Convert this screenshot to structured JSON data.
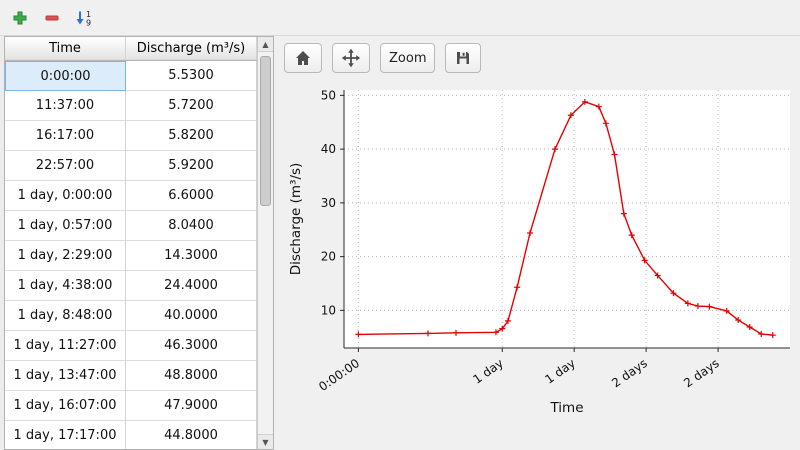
{
  "main_toolbar": {
    "icons": [
      "add-icon",
      "remove-icon",
      "sort-numeric-ascending-icon"
    ],
    "sort_digits": [
      "1",
      "9"
    ],
    "add_color": "#3fae49",
    "remove_color": "#e05050",
    "sort_arrow_color": "#2f6fd6"
  },
  "table": {
    "columns": [
      "Time",
      "Discharge (m³/s)"
    ],
    "selected_row": 0,
    "rows": [
      [
        "0:00:00",
        "5.5300"
      ],
      [
        "11:37:00",
        "5.7200"
      ],
      [
        "16:17:00",
        "5.8200"
      ],
      [
        "22:57:00",
        "5.9200"
      ],
      [
        "1 day, 0:00:00",
        "6.6000"
      ],
      [
        "1 day, 0:57:00",
        "8.0400"
      ],
      [
        "1 day, 2:29:00",
        "14.3000"
      ],
      [
        "1 day, 4:38:00",
        "24.4000"
      ],
      [
        "1 day, 8:48:00",
        "40.0000"
      ],
      [
        "1 day, 11:27:00",
        "46.3000"
      ],
      [
        "1 day, 13:47:00",
        "48.8000"
      ],
      [
        "1 day, 16:07:00",
        "47.9000"
      ],
      [
        "1 day, 17:17:00",
        "44.8000"
      ]
    ]
  },
  "chart_toolbar": {
    "icons": [
      "home-icon",
      "pan-icon",
      "save-icon"
    ],
    "zoom_label": "Zoom"
  },
  "chart_data": {
    "type": "line",
    "title": "",
    "xlabel": "Time",
    "ylabel": "Discharge (m³/s)",
    "x_days": [
      0,
      0.484,
      0.6785,
      0.9563,
      1.0,
      1.0396,
      1.1035,
      1.1931,
      1.3667,
      1.4771,
      1.5743,
      1.6715,
      1.7201,
      1.78,
      1.845,
      1.9,
      1.99,
      2.08,
      2.19,
      2.29,
      2.36,
      2.44,
      2.56,
      2.64,
      2.72,
      2.8,
      2.88
    ],
    "values": [
      5.53,
      5.72,
      5.82,
      5.92,
      6.6,
      8.04,
      14.3,
      24.4,
      40.0,
      46.3,
      48.8,
      47.9,
      44.8,
      39.0,
      28.0,
      24.0,
      19.3,
      16.5,
      13.2,
      11.3,
      10.8,
      10.7,
      9.9,
      8.2,
      6.9,
      5.6,
      5.4
    ],
    "xlim": [
      -0.1,
      3.0
    ],
    "ylim": [
      3,
      51
    ],
    "xticks": {
      "positions": [
        0,
        1,
        1.5,
        2,
        2.5
      ],
      "labels": [
        "0:00:00",
        "1 day",
        "1 day",
        "2 days",
        "2 days"
      ]
    },
    "yticks": [
      10,
      20,
      30,
      40,
      50
    ],
    "line_color": "#e60000",
    "marker": "plus",
    "grid": "dotted",
    "legend": "none"
  }
}
